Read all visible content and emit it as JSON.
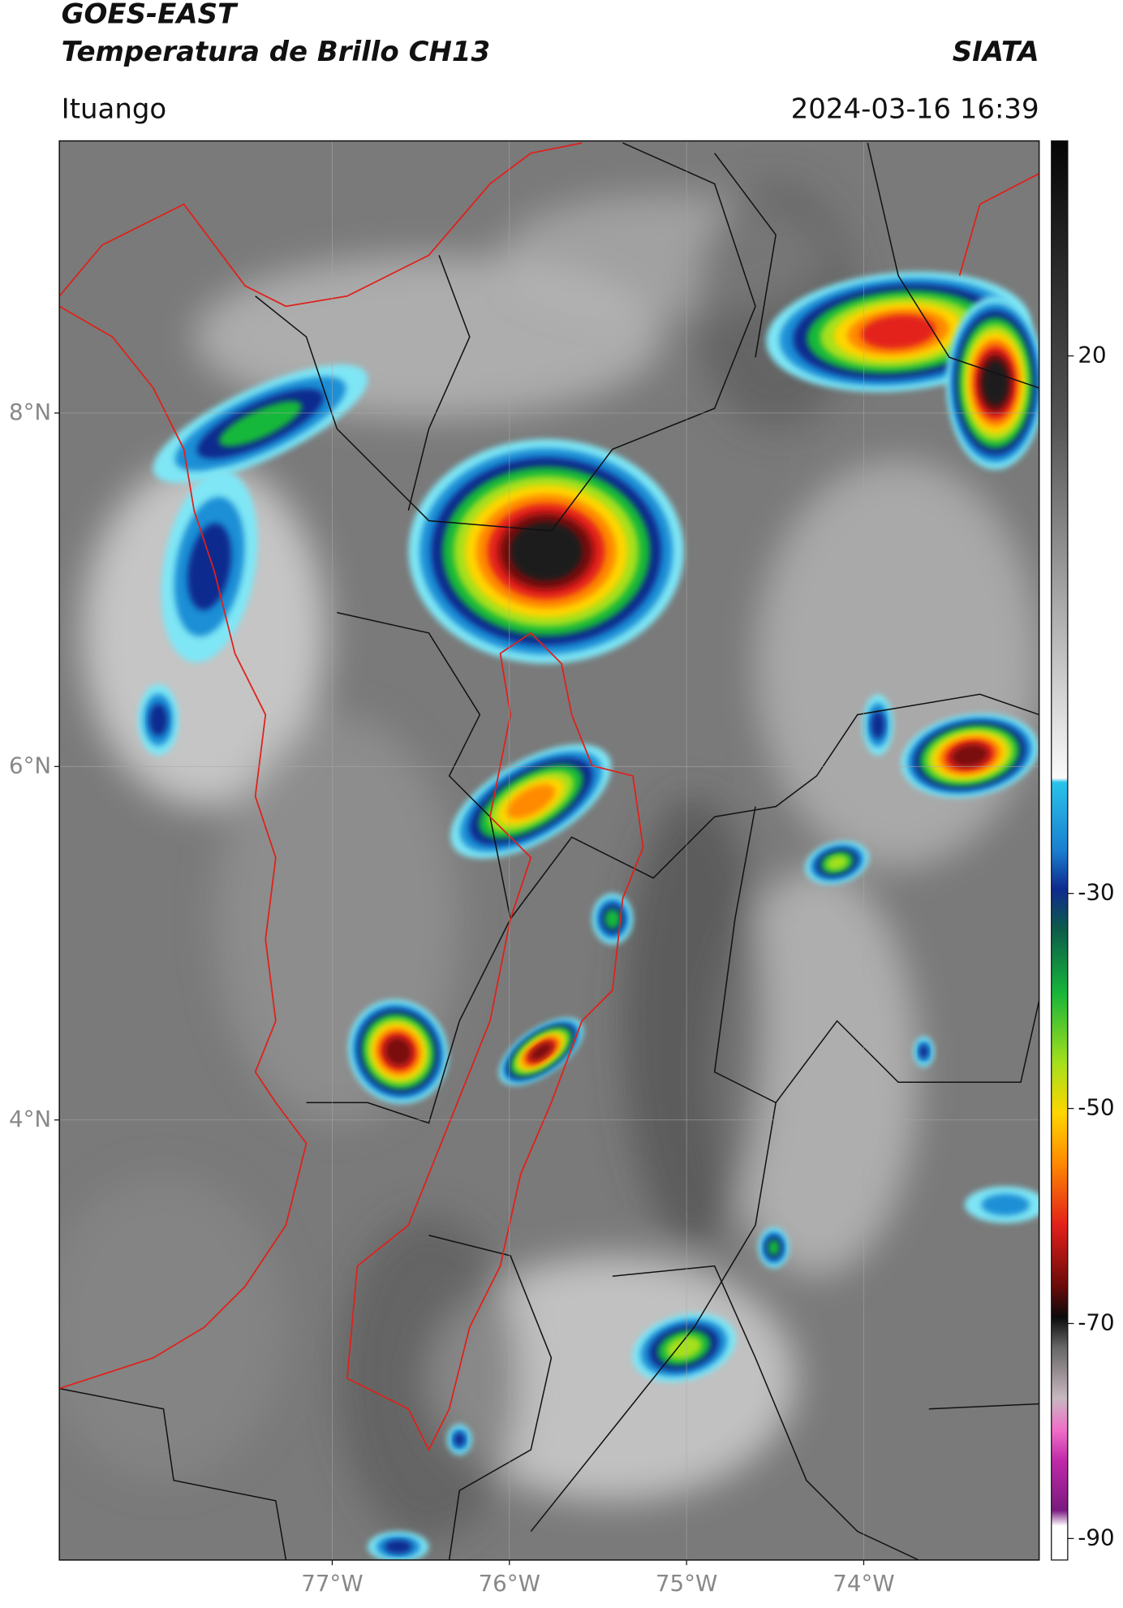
{
  "header": {
    "title": "GOES-EAST",
    "subtitle": "Temperatura de Brillo CH13",
    "brand": "SIATA",
    "location": "Ituango",
    "datetime": "2024-03-16 16:39"
  },
  "map": {
    "xlim": [
      -78.54,
      -73.01
    ],
    "ylim": [
      1.51,
      9.54
    ],
    "xticks": [
      {
        "value": -77,
        "label": "77°W"
      },
      {
        "value": -76,
        "label": "76°W"
      },
      {
        "value": -75,
        "label": "75°W"
      },
      {
        "value": -74,
        "label": "74°W"
      }
    ],
    "yticks": [
      {
        "value": 8,
        "label": "8°N"
      },
      {
        "value": 6,
        "label": "6°N"
      },
      {
        "value": 4,
        "label": "4°N"
      }
    ]
  },
  "colorbar": {
    "lim": [
      -92,
      40
    ],
    "ticks": [
      20,
      -30,
      -50,
      -70,
      -90
    ]
  }
}
